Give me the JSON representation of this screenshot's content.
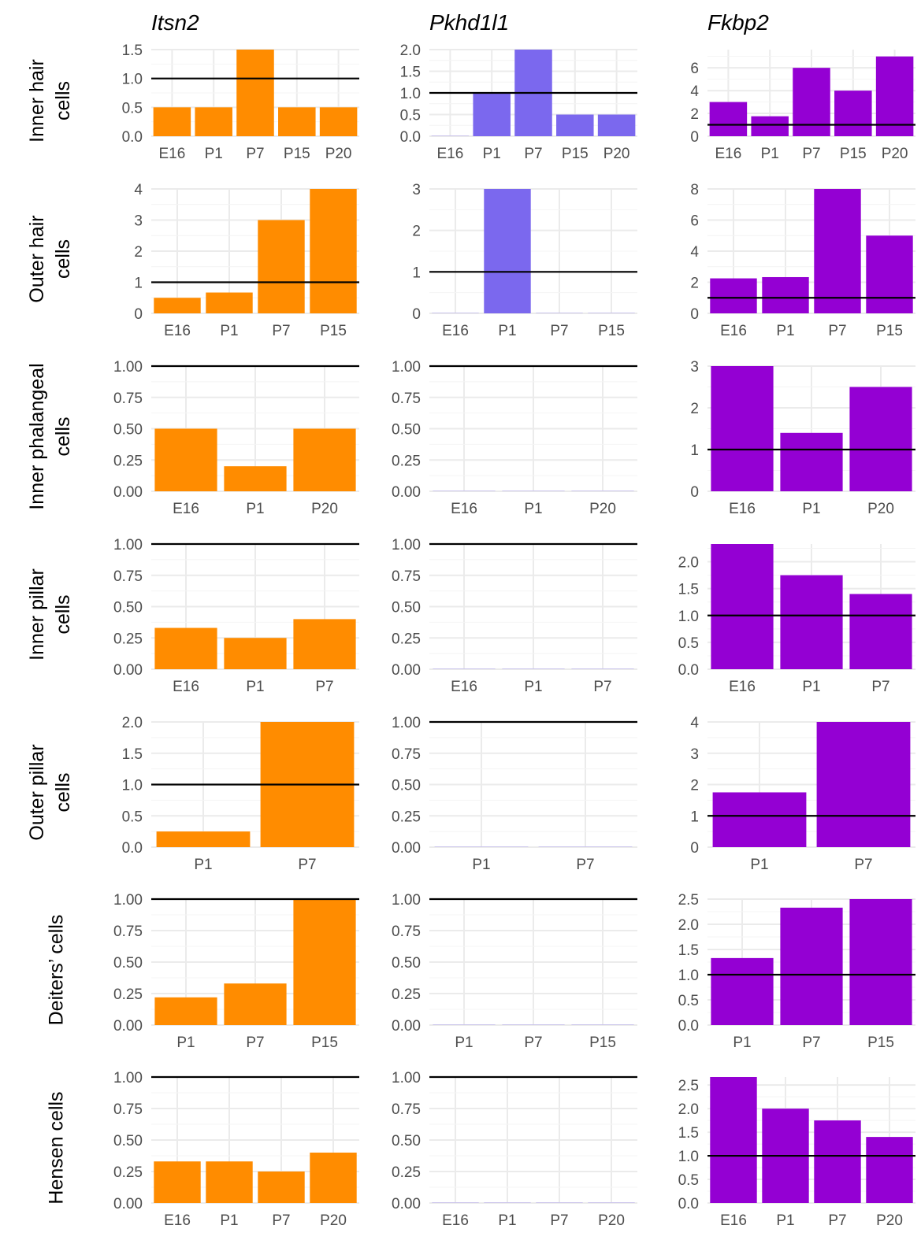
{
  "figure": {
    "column_titles": [
      "Itsn2",
      "Pkhd1l1",
      "Fkbp2"
    ],
    "row_labels": [
      [
        "Inner hair",
        "cells"
      ],
      [
        "Outer hair",
        "cells"
      ],
      [
        "Inner phalangeal",
        "cells"
      ],
      [
        "Inner pillar",
        "cells"
      ],
      [
        "Outer pillar",
        "cells"
      ],
      [
        "Deiters’ cells"
      ],
      [
        "Hensen cells"
      ]
    ],
    "reference_line_value": 1,
    "colors": {
      "Itsn2": "#ff8c00",
      "Pkhd1l1": "#7b68ee",
      "Fkbp2": "#9400d3"
    }
  },
  "chart_data": [
    {
      "type": "bar",
      "gene": "Itsn2",
      "cell_type": "Inner hair cells",
      "categories": [
        "E16",
        "P1",
        "P7",
        "P15",
        "P20"
      ],
      "values": [
        0.5,
        0.5,
        1.5,
        0.5,
        0.5
      ],
      "ylim": [
        0,
        1.5
      ],
      "yticks": [
        "0.0",
        "0.5",
        "1.0",
        "1.5"
      ],
      "reference_line": 1
    },
    {
      "type": "bar",
      "gene": "Pkhd1l1",
      "cell_type": "Inner hair cells",
      "categories": [
        "E16",
        "P1",
        "P7",
        "P15",
        "P20"
      ],
      "values": [
        0,
        1.0,
        2.0,
        0.5,
        0.5
      ],
      "ylim": [
        0,
        2.0
      ],
      "yticks": [
        "0.0",
        "0.5",
        "1.0",
        "1.5",
        "2.0"
      ],
      "reference_line": 1
    },
    {
      "type": "bar",
      "gene": "Fkbp2",
      "cell_type": "Inner hair cells",
      "categories": [
        "E16",
        "P1",
        "P7",
        "P15",
        "P20"
      ],
      "values": [
        3.0,
        1.75,
        6.0,
        4.0,
        7.0
      ],
      "ylim": [
        0,
        7.6
      ],
      "yticks": [
        "0",
        "2",
        "4",
        "6"
      ],
      "reference_line": 1
    },
    {
      "type": "bar",
      "gene": "Itsn2",
      "cell_type": "Outer hair cells",
      "categories": [
        "E16",
        "P1",
        "P7",
        "P15"
      ],
      "values": [
        0.5,
        0.67,
        3.0,
        4.0
      ],
      "ylim": [
        0,
        4.0
      ],
      "yticks": [
        "0",
        "1",
        "2",
        "3",
        "4"
      ],
      "reference_line": 1
    },
    {
      "type": "bar",
      "gene": "Pkhd1l1",
      "cell_type": "Outer hair cells",
      "categories": [
        "E16",
        "P1",
        "P7",
        "P15"
      ],
      "values": [
        0,
        3.0,
        0,
        0
      ],
      "ylim": [
        0,
        3.0
      ],
      "yticks": [
        "0",
        "1",
        "2",
        "3"
      ],
      "reference_line": 1
    },
    {
      "type": "bar",
      "gene": "Fkbp2",
      "cell_type": "Outer hair cells",
      "categories": [
        "E16",
        "P1",
        "P7",
        "P15"
      ],
      "values": [
        2.25,
        2.33,
        8.0,
        5.0
      ],
      "ylim": [
        0,
        8.0
      ],
      "yticks": [
        "0",
        "2",
        "4",
        "6",
        "8"
      ],
      "reference_line": 1
    },
    {
      "type": "bar",
      "gene": "Itsn2",
      "cell_type": "Inner phalangeal cells",
      "categories": [
        "E16",
        "P1",
        "P20"
      ],
      "values": [
        0.5,
        0.2,
        0.5
      ],
      "ylim": [
        0,
        1.0
      ],
      "yticks": [
        "0.00",
        "0.25",
        "0.50",
        "0.75",
        "1.00"
      ],
      "reference_line": 1
    },
    {
      "type": "bar",
      "gene": "Pkhd1l1",
      "cell_type": "Inner phalangeal cells",
      "categories": [
        "E16",
        "P1",
        "P20"
      ],
      "values": [
        0,
        0,
        0
      ],
      "ylim": [
        0,
        1.0
      ],
      "yticks": [
        "0.00",
        "0.25",
        "0.50",
        "0.75",
        "1.00"
      ],
      "reference_line": 1
    },
    {
      "type": "bar",
      "gene": "Fkbp2",
      "cell_type": "Inner phalangeal cells",
      "categories": [
        "E16",
        "P1",
        "P20"
      ],
      "values": [
        3.0,
        1.4,
        2.5
      ],
      "ylim": [
        0,
        3.0
      ],
      "yticks": [
        "0",
        "1",
        "2",
        "3"
      ],
      "reference_line": 1
    },
    {
      "type": "bar",
      "gene": "Itsn2",
      "cell_type": "Inner pillar cells",
      "categories": [
        "E16",
        "P1",
        "P7"
      ],
      "values": [
        0.33,
        0.25,
        0.4
      ],
      "ylim": [
        0,
        1.0
      ],
      "yticks": [
        "0.00",
        "0.25",
        "0.50",
        "0.75",
        "1.00"
      ],
      "reference_line": 1
    },
    {
      "type": "bar",
      "gene": "Pkhd1l1",
      "cell_type": "Inner pillar cells",
      "categories": [
        "E16",
        "P1",
        "P7"
      ],
      "values": [
        0,
        0,
        0
      ],
      "ylim": [
        0,
        1.0
      ],
      "yticks": [
        "0.00",
        "0.25",
        "0.50",
        "0.75",
        "1.00"
      ],
      "reference_line": 1
    },
    {
      "type": "bar",
      "gene": "Fkbp2",
      "cell_type": "Inner pillar cells",
      "categories": [
        "E16",
        "P1",
        "P7"
      ],
      "values": [
        2.33,
        1.75,
        1.4
      ],
      "ylim": [
        0,
        2.33
      ],
      "yticks": [
        "0.0",
        "0.5",
        "1.0",
        "1.5",
        "2.0"
      ],
      "reference_line": 1
    },
    {
      "type": "bar",
      "gene": "Itsn2",
      "cell_type": "Outer pillar cells",
      "categories": [
        "P1",
        "P7"
      ],
      "values": [
        0.25,
        2.0
      ],
      "ylim": [
        0,
        2.0
      ],
      "yticks": [
        "0.0",
        "0.5",
        "1.0",
        "1.5",
        "2.0"
      ],
      "reference_line": 1
    },
    {
      "type": "bar",
      "gene": "Pkhd1l1",
      "cell_type": "Outer pillar cells",
      "categories": [
        "P1",
        "P7"
      ],
      "values": [
        0,
        0
      ],
      "ylim": [
        0,
        1.0
      ],
      "yticks": [
        "0.00",
        "0.25",
        "0.50",
        "0.75",
        "1.00"
      ],
      "reference_line": 1
    },
    {
      "type": "bar",
      "gene": "Fkbp2",
      "cell_type": "Outer pillar cells",
      "categories": [
        "P1",
        "P7"
      ],
      "values": [
        1.75,
        4.0
      ],
      "ylim": [
        0,
        4.0
      ],
      "yticks": [
        "0",
        "1",
        "2",
        "3",
        "4"
      ],
      "reference_line": 1
    },
    {
      "type": "bar",
      "gene": "Itsn2",
      "cell_type": "Deiters’ cells",
      "categories": [
        "P1",
        "P7",
        "P15"
      ],
      "values": [
        0.22,
        0.33,
        1.0
      ],
      "ylim": [
        0,
        1.0
      ],
      "yticks": [
        "0.00",
        "0.25",
        "0.50",
        "0.75",
        "1.00"
      ],
      "reference_line": 1
    },
    {
      "type": "bar",
      "gene": "Pkhd1l1",
      "cell_type": "Deiters’ cells",
      "categories": [
        "P1",
        "P7",
        "P15"
      ],
      "values": [
        0,
        0,
        0
      ],
      "ylim": [
        0,
        1.0
      ],
      "yticks": [
        "0.00",
        "0.25",
        "0.50",
        "0.75",
        "1.00"
      ],
      "reference_line": 1
    },
    {
      "type": "bar",
      "gene": "Fkbp2",
      "cell_type": "Deiters’ cells",
      "categories": [
        "P1",
        "P7",
        "P15"
      ],
      "values": [
        1.33,
        2.33,
        2.5
      ],
      "ylim": [
        0,
        2.5
      ],
      "yticks": [
        "0.0",
        "0.5",
        "1.0",
        "1.5",
        "2.0",
        "2.5"
      ],
      "reference_line": 1
    },
    {
      "type": "bar",
      "gene": "Itsn2",
      "cell_type": "Hensen cells",
      "categories": [
        "E16",
        "P1",
        "P7",
        "P20"
      ],
      "values": [
        0.33,
        0.33,
        0.25,
        0.4
      ],
      "ylim": [
        0,
        1.0
      ],
      "yticks": [
        "0.00",
        "0.25",
        "0.50",
        "0.75",
        "1.00"
      ],
      "reference_line": 1
    },
    {
      "type": "bar",
      "gene": "Pkhd1l1",
      "cell_type": "Hensen cells",
      "categories": [
        "E16",
        "P1",
        "P7",
        "P20"
      ],
      "values": [
        0,
        0,
        0,
        0
      ],
      "ylim": [
        0,
        1.0
      ],
      "yticks": [
        "0.00",
        "0.25",
        "0.50",
        "0.75",
        "1.00"
      ],
      "reference_line": 1
    },
    {
      "type": "bar",
      "gene": "Fkbp2",
      "cell_type": "Hensen cells",
      "categories": [
        "E16",
        "P1",
        "P7",
        "P20"
      ],
      "values": [
        2.67,
        2.0,
        1.75,
        1.4
      ],
      "ylim": [
        0,
        2.67
      ],
      "yticks": [
        "0.0",
        "0.5",
        "1.0",
        "1.5",
        "2.0",
        "2.5"
      ],
      "reference_line": 1
    }
  ]
}
